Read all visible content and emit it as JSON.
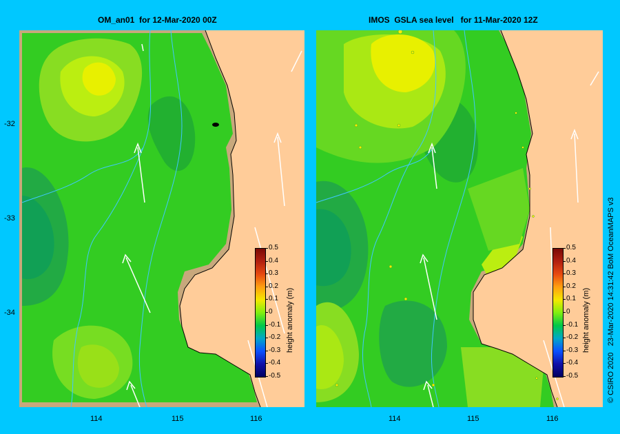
{
  "left_panel": {
    "title": "OM_an01  for 12-Mar-2020 00Z"
  },
  "right_panel": {
    "title": "IMOS  GSLA sea level   for 11-Mar-2020 12Z"
  },
  "axes": {
    "lat_labels": [
      "-32",
      "-33",
      "-34"
    ],
    "lon_labels": [
      "114",
      "115",
      "116"
    ]
  },
  "colorbar": {
    "title": "height anomaly (m)",
    "ticks": [
      "0.5",
      "0.4",
      "0.3",
      "0.2",
      "0.1",
      "0",
      "-0.1",
      "-0.2",
      "-0.3",
      "-0.4",
      "-0.5"
    ]
  },
  "credit": "© CSIRO 2020   23-Mar-2020 14:31:42 BoM OceanMAPS v3",
  "colors": {
    "background": "#00c8ff",
    "land": "#ffcc99",
    "shelf": "#c8a87c",
    "bathymetry_contour": "#40c8ff"
  }
}
